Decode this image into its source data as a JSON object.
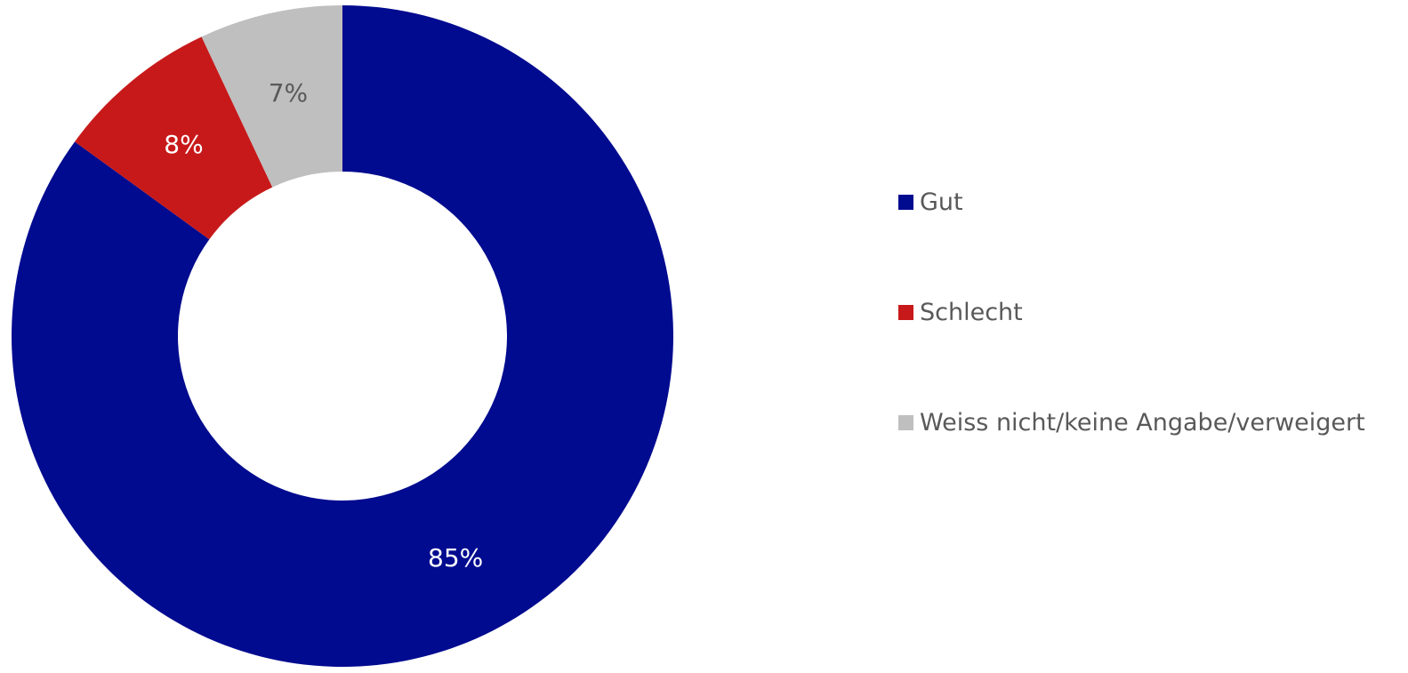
{
  "chart_data": {
    "type": "pie",
    "donut": true,
    "categories": [
      "Gut",
      "Schlecht",
      "Weiss nicht/keine Angabe/verweigert"
    ],
    "values": [
      85,
      8,
      7
    ],
    "data_labels": [
      "85%",
      "8%",
      "7%"
    ],
    "colors": [
      "#000b8f",
      "#c8191a",
      "#bfbfbf"
    ],
    "label_colors": [
      "#ffffff",
      "#ffffff",
      "#595959"
    ],
    "legend_placement": "right",
    "title": ""
  }
}
